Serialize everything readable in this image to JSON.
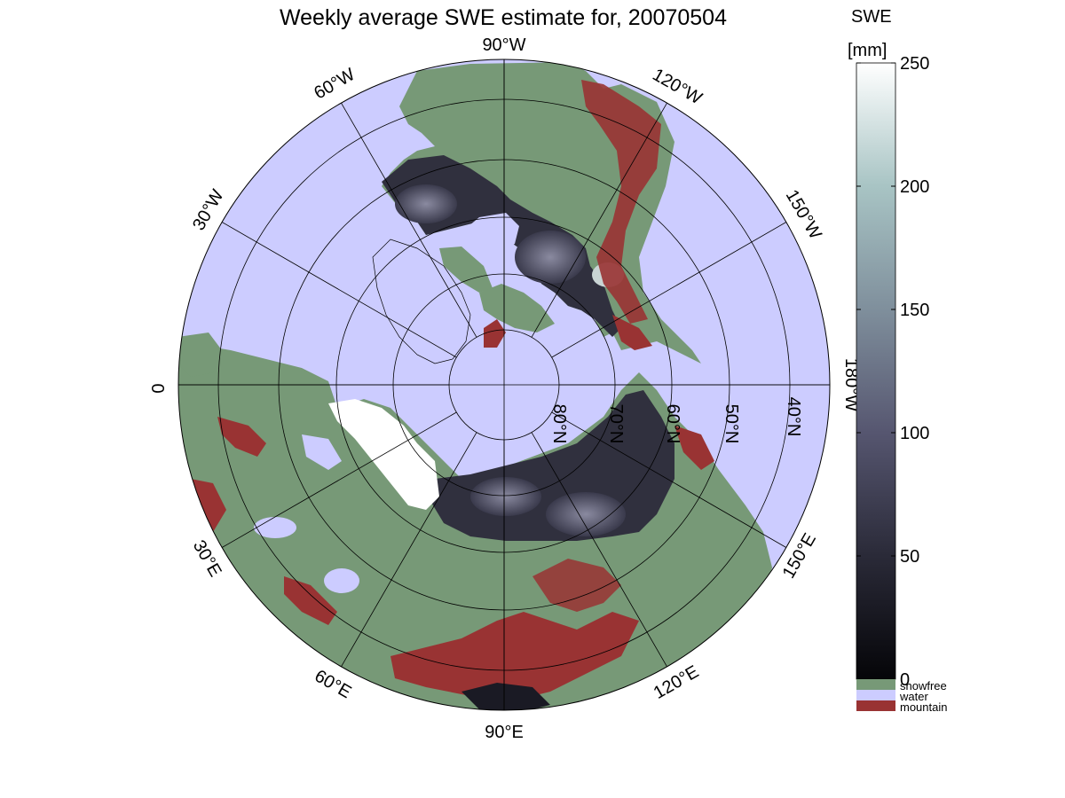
{
  "title": "Weekly average SWE estimate for, 20070504",
  "colorbar": {
    "title_line1": "SWE",
    "title_line2": "[mm]",
    "ticks": [
      "0",
      "50",
      "100",
      "150",
      "200",
      "250"
    ],
    "min": 0,
    "max": 250,
    "gradient_colors": [
      "#050508",
      "#2a2a38",
      "#565670",
      "#7f8f9c",
      "#a8c4c4",
      "#ffffff"
    ],
    "categories": [
      {
        "label": "snowfree",
        "color": "#779977"
      },
      {
        "label": "water",
        "color": "#ccccff"
      },
      {
        "label": "mountain",
        "color": "#993333"
      }
    ]
  },
  "map": {
    "projection": "north-polar-stereographic",
    "longitude_labels": [
      "90°W",
      "120°W",
      "150°W",
      "180°W",
      "150°E",
      "120°E",
      "90°E",
      "60°E",
      "30°E",
      "0",
      "30°W",
      "60°W"
    ],
    "latitude_labels": [
      "80°N",
      "70°N",
      "60°N",
      "50°N",
      "40°N"
    ],
    "colors": {
      "water": "#ccccff",
      "snowfree": "#779977",
      "mountain": "#993333",
      "snow_low": "#1a1a24",
      "snow_mid": "#55556a",
      "snow_high": "#ffffff"
    }
  }
}
